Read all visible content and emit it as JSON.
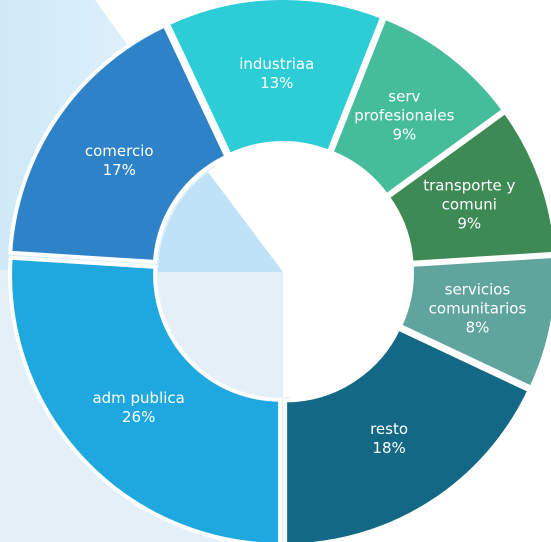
{
  "chart_data": {
    "type": "pie",
    "categories": [
      "industriaa",
      "serv profesionales",
      "transporte y comuni",
      "servicios comunitarios",
      "resto",
      "adm publica",
      "comercio"
    ],
    "values": [
      13,
      9,
      9,
      8,
      18,
      26,
      17
    ],
    "value_labels": [
      "13%",
      "9%",
      "9%",
      "8%",
      "18%",
      "26%",
      "17%"
    ],
    "colors": [
      "#2ccdd6",
      "#45bd9a",
      "#3d8a55",
      "#5fa59e",
      "#136885",
      "#1fa8e0",
      "#2d82c8"
    ]
  }
}
